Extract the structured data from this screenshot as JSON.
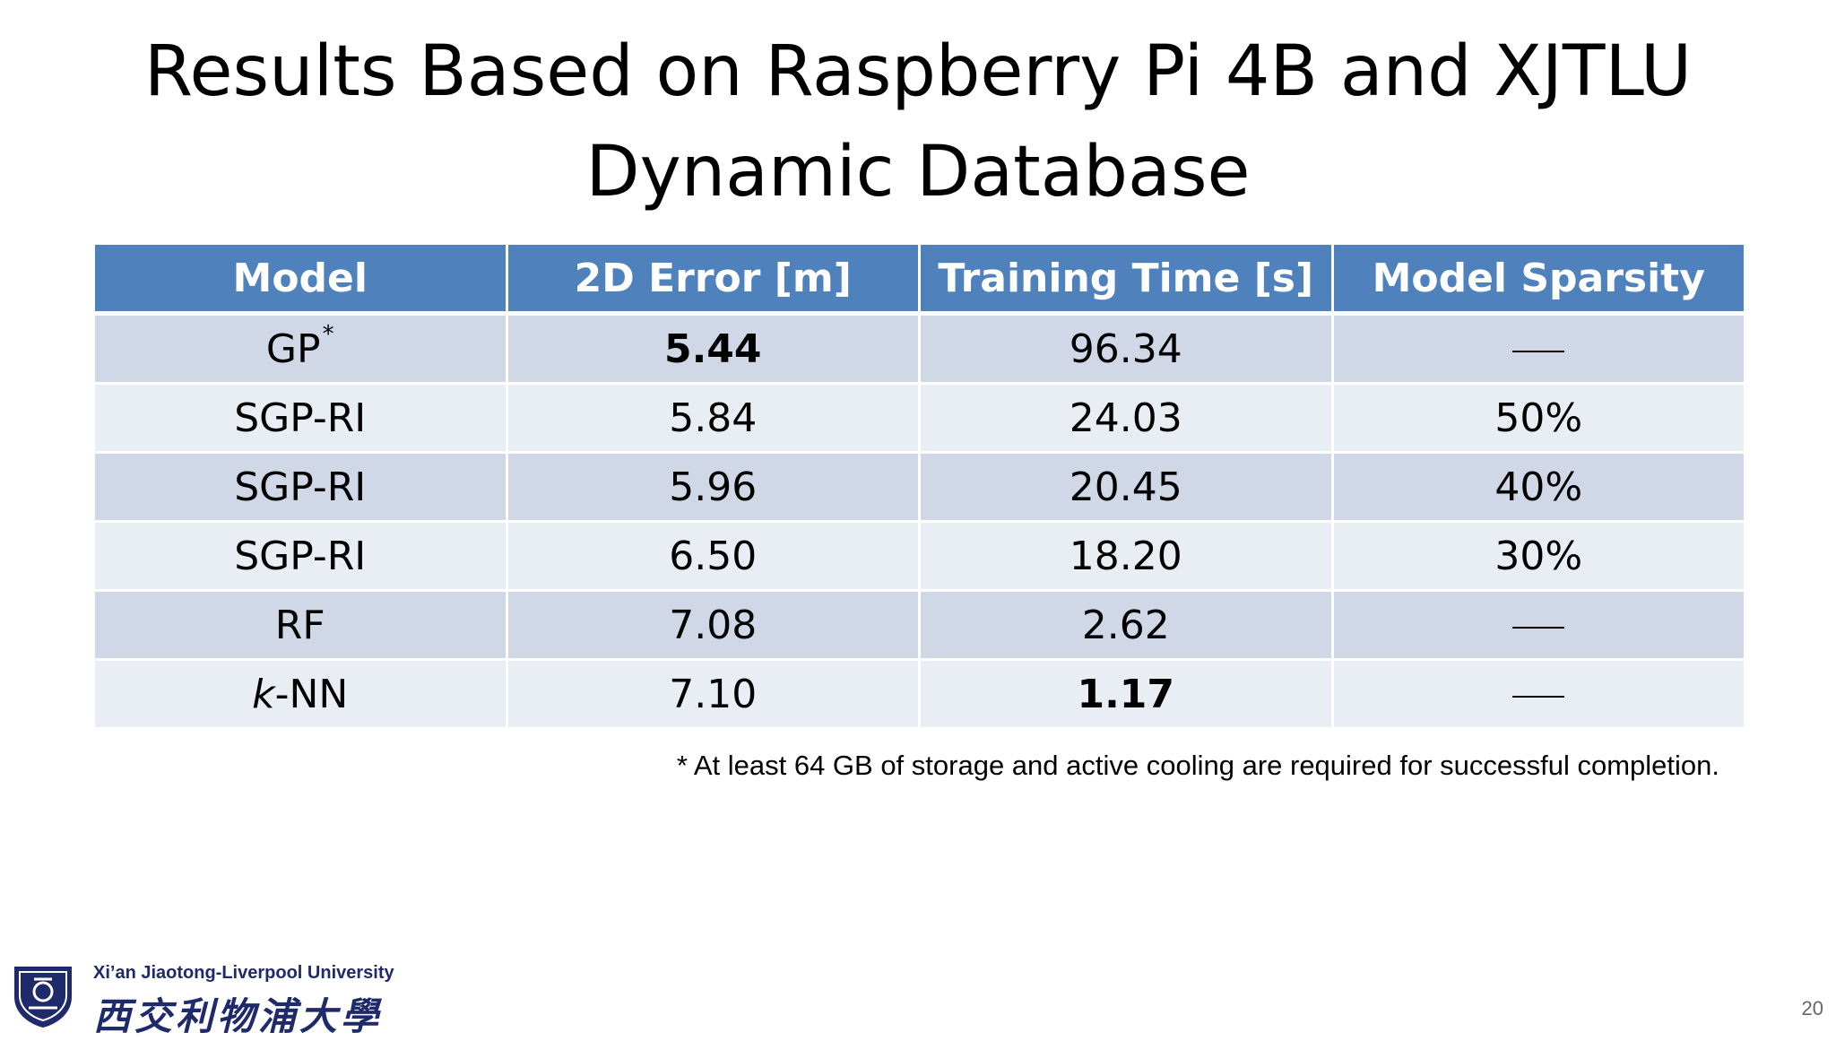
{
  "slide": {
    "title_line1": "Results Based on Raspberry Pi 4B and XJTLU",
    "title_line2": "Dynamic Database",
    "footnote": "* At least 64 GB of storage and active cooling are required for successful completion.",
    "page_number": "20"
  },
  "table": {
    "headers": [
      "Model",
      "2D Error [m]",
      "Training Time [s]",
      "Model Sparsity"
    ],
    "rows": [
      {
        "model": "GP",
        "model_mark": "*",
        "error": "5.44",
        "time": "96.34",
        "sparsity": "—"
      },
      {
        "model": "SGP-RI",
        "error": "5.84",
        "time": "24.03",
        "sparsity": "50%"
      },
      {
        "model": "SGP-RI",
        "error": "5.96",
        "time": "20.45",
        "sparsity": "40%"
      },
      {
        "model": "SGP-RI",
        "error": "6.50",
        "time": "18.20",
        "sparsity": "30%"
      },
      {
        "model": "RF",
        "error": "7.08",
        "time": "2.62",
        "sparsity": "—"
      },
      {
        "model_italic": "k",
        "model_rest": "-NN",
        "error": "7.10",
        "time": "1.17",
        "sparsity": "—"
      }
    ]
  },
  "logo": {
    "english_name": "Xi’an Jiaotong-Liverpool University",
    "chinese_name": "西交利物浦大學",
    "icon": "university-shield-icon"
  },
  "colors": {
    "header_bg": "#4f81bd",
    "row_odd": "#d0d8e8",
    "row_even": "#e9edf4",
    "logo_blue": "#1f2a6b"
  }
}
